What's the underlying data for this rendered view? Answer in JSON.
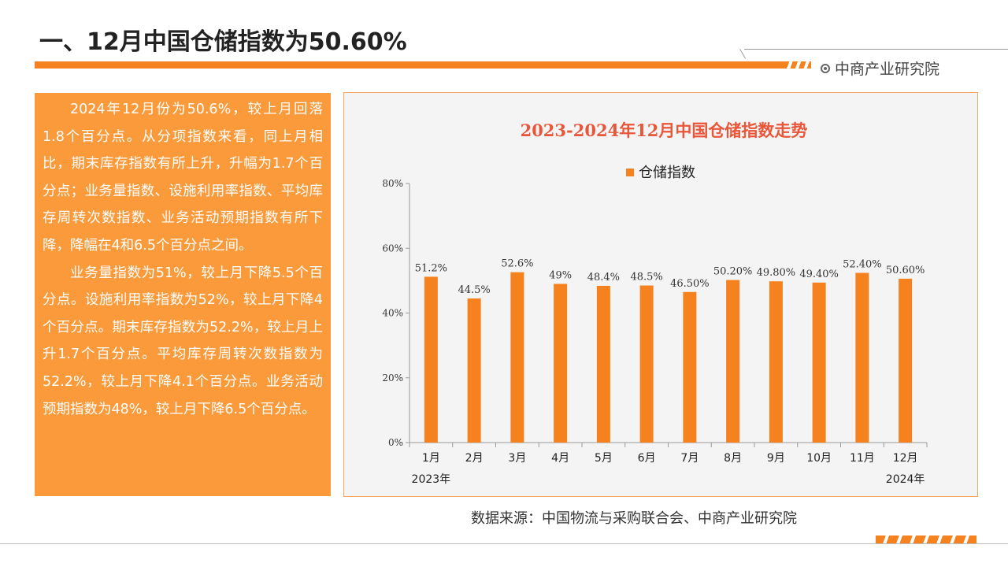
{
  "header": {
    "title": "一、12月中国仓储指数为50.60%",
    "brand": "中商产业研究院",
    "brand_icon": "circle-dot-icon"
  },
  "summary": {
    "paragraph1": "2024年12月份为50.6%，较上月回落1.8个百分点。从分项指数来看，同上月相比，期末库存指数有所上升，升幅为1.7个百分点；业务量指数、设施利用率指数、平均库存周转次数指数、业务活动预期指数有所下降，降幅在4和6.5个百分点之间。",
    "paragraph2": "业务量指数为51%，较上月下降5.5个百分点。设施利用率指数为52%，较上月下降4个百分点。期末库存指数为52.2%，较上月上升1.7个百分点。平均库存周转次数指数为52.2%，较上月下降4.1个百分点。业务活动预期指数为48%，较上月下降6.5个百分点。"
  },
  "source": "数据来源：中国物流与采购联合会、中商产业研究院",
  "colors": {
    "accent": "#f5821f",
    "panel": "#fa9a3a",
    "bar": "#f5821f",
    "title_red": "#e8573a"
  },
  "chart_data": {
    "type": "bar",
    "title": "2023-2024年12月中国仓储指数走势",
    "legend": "top-center",
    "grid": false,
    "categories": [
      "1月",
      "2月",
      "3月",
      "4月",
      "5月",
      "6月",
      "7月",
      "8月",
      "9月",
      "10月",
      "11月",
      "12月"
    ],
    "year_labels": [
      {
        "index": 0,
        "text": "2023年"
      },
      {
        "index": 11,
        "text": "2024年"
      }
    ],
    "series": [
      {
        "name": "仓储指数",
        "values": [
          51.2,
          44.5,
          52.6,
          49,
          48.4,
          48.5,
          46.5,
          50.2,
          49.8,
          49.4,
          52.4,
          50.6
        ],
        "labels": [
          "51.2%",
          "44.5%",
          "52.6%",
          "49%",
          "48.4%",
          "48.5%",
          "46.50%",
          "50.20%",
          "49.80%",
          "49.40%",
          "52.40%",
          "50.60%"
        ]
      }
    ],
    "ylim": [
      0,
      80
    ],
    "yticks": [
      "0%",
      "20%",
      "40%",
      "60%",
      "80%"
    ],
    "ytick_values": [
      0,
      20,
      40,
      60,
      80
    ],
    "xlabel": "",
    "ylabel": ""
  }
}
